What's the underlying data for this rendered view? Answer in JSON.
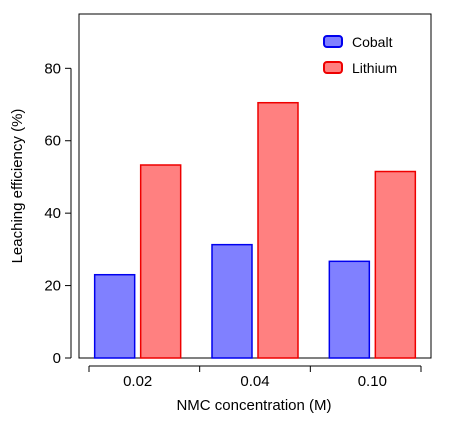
{
  "chart_data": {
    "type": "bar",
    "title": "",
    "xlabel": "NMC concentration (M)",
    "ylabel": "Leaching efficiency (%)",
    "categories": [
      "0.02",
      "0.04",
      "0.10"
    ],
    "ylim": [
      0,
      95
    ],
    "yticks": [
      0,
      20,
      40,
      60,
      80
    ],
    "grid": false,
    "legend_position": "top-right",
    "series": [
      {
        "name": "Cobalt",
        "values": [
          23,
          31.3,
          26.7
        ],
        "fill": "#8080ff",
        "stroke": "#0000ee"
      },
      {
        "name": "Lithium",
        "values": [
          53.3,
          70.5,
          51.5
        ],
        "fill": "#ff8080",
        "stroke": "#ee0000"
      }
    ]
  }
}
